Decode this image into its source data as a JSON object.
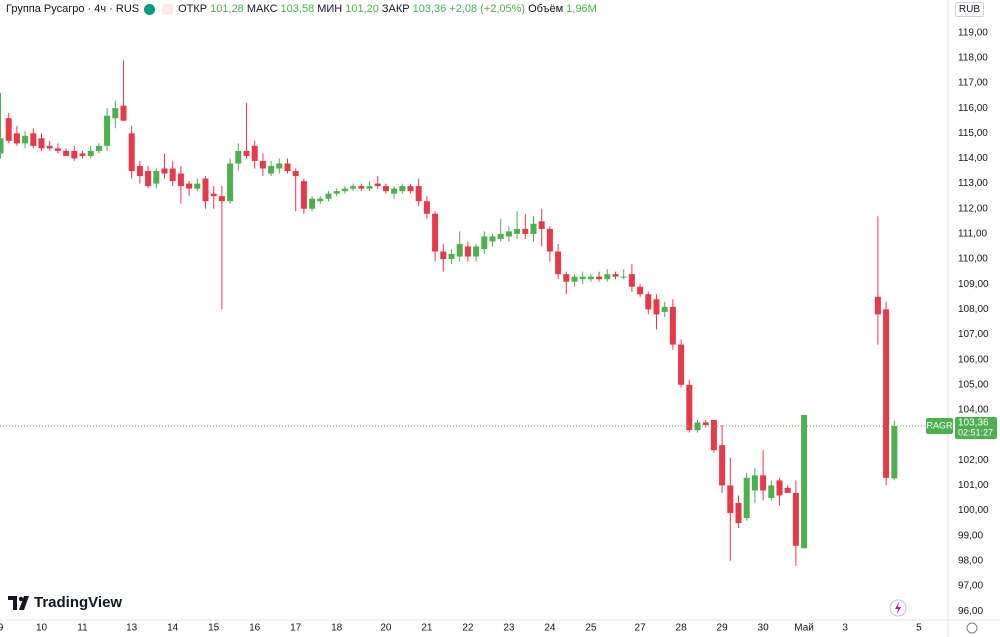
{
  "header": {
    "title": "Группа Русагро · 4ч · RUS",
    "fields": [
      {
        "label": "ОТКР",
        "value": "101,28"
      },
      {
        "label": "МАКС",
        "value": "103,58"
      },
      {
        "label": "МИН",
        "value": "101,20"
      },
      {
        "label": "ЗАКР",
        "value": "103,36"
      }
    ],
    "change": "+2,08 (+2,05%)",
    "volume_label": "Объём",
    "volume": "1,96M"
  },
  "currency": "RUB",
  "brand": "TradingView",
  "chart_data": {
    "type": "candlestick",
    "up_color": "#4caf50",
    "down_color": "#e8394b",
    "grid": false,
    "categories": [
      "9",
      null,
      null,
      null,
      null,
      "10",
      null,
      null,
      null,
      null,
      "11",
      null,
      null,
      null,
      null,
      null,
      "13",
      null,
      null,
      null,
      null,
      "14",
      null,
      null,
      null,
      null,
      "15",
      null,
      null,
      null,
      null,
      "16",
      null,
      null,
      null,
      null,
      "17",
      null,
      null,
      null,
      null,
      "18",
      null,
      null,
      null,
      null,
      null,
      "20",
      null,
      null,
      null,
      null,
      "21",
      null,
      null,
      null,
      null,
      "22",
      null,
      null,
      null,
      null,
      "23",
      null,
      null,
      null,
      null,
      "24",
      null,
      null,
      null,
      null,
      "25",
      null,
      null,
      null,
      null,
      null,
      "27",
      null,
      null,
      null,
      null,
      "28",
      null,
      null,
      null,
      null,
      "29",
      null,
      null,
      null,
      null,
      "30",
      null,
      null,
      null,
      null,
      "Май",
      null,
      null,
      null,
      null,
      "3",
      null,
      null,
      null,
      null,
      null,
      null,
      null,
      null,
      "5"
    ],
    "open": [
      114.2,
      115.6,
      115.0,
      114.6,
      115.0,
      114.8,
      114.5,
      114.4,
      114.3,
      114.3,
      114.2,
      114.1,
      114.3,
      114.5,
      115.6,
      116.1,
      115.0,
      113.7,
      113.5,
      113.0,
      113.6,
      113.6,
      113.4,
      113.0,
      112.8,
      113.2,
      112.6,
      112.5,
      112.3,
      113.8,
      114.3,
      114.5,
      113.9,
      113.4,
      113.6,
      113.8,
      113.5,
      113.1,
      112.0,
      112.3,
      112.4,
      112.6,
      112.7,
      112.8,
      112.9,
      112.8,
      113.0,
      112.9,
      112.6,
      112.7,
      112.9,
      112.9,
      112.3,
      111.8,
      110.3,
      110.0,
      110.1,
      110.5,
      110.1,
      110.4,
      110.7,
      110.8,
      110.9,
      111.0,
      111.2,
      111.0,
      111.5,
      111.2,
      110.3,
      109.4,
      109.1,
      109.2,
      109.2,
      109.3,
      109.2,
      109.4,
      109.3,
      109.4,
      108.9,
      108.6,
      108.4,
      107.9,
      108.1,
      106.6,
      105.0,
      103.2,
      103.5,
      103.6,
      102.6,
      101.0,
      100.3,
      99.7,
      100.8,
      101.4,
      100.5,
      101.2,
      100.9,
      100.7,
      98.5,
      null,
      null,
      null,
      null,
      null,
      null,
      null,
      null,
      108.5,
      108.0,
      101.28,
      null,
      null,
      null
    ],
    "high": [
      116.6,
      115.8,
      115.3,
      115.1,
      115.2,
      115.0,
      114.7,
      114.6,
      114.4,
      114.5,
      114.3,
      114.5,
      114.6,
      116.0,
      116.3,
      117.9,
      115.3,
      113.9,
      113.7,
      113.6,
      114.2,
      113.9,
      113.7,
      113.1,
      113.2,
      113.3,
      112.9,
      112.9,
      114.0,
      114.6,
      116.2,
      114.7,
      114.2,
      113.9,
      114.0,
      114.0,
      113.6,
      113.2,
      112.5,
      112.5,
      112.7,
      112.8,
      112.9,
      113.0,
      113.0,
      113.1,
      113.3,
      113.0,
      112.9,
      113.0,
      113.0,
      113.2,
      112.5,
      111.9,
      110.6,
      110.4,
      111.1,
      110.7,
      110.6,
      111.1,
      111.0,
      111.6,
      111.3,
      111.9,
      111.8,
      111.7,
      112.0,
      111.3,
      110.6,
      109.5,
      109.4,
      109.5,
      109.4,
      109.5,
      109.6,
      109.5,
      109.6,
      109.8,
      109.0,
      108.7,
      108.6,
      108.3,
      108.4,
      106.8,
      105.2,
      103.6,
      103.6,
      103.6,
      103.4,
      102.1,
      100.6,
      101.5,
      101.7,
      102.4,
      101.2,
      101.3,
      101.0,
      101.2,
      103.8,
      null,
      null,
      null,
      null,
      null,
      null,
      null,
      null,
      111.7,
      108.3,
      103.58,
      null,
      null,
      null
    ],
    "low": [
      114.0,
      114.6,
      114.5,
      114.4,
      114.4,
      114.3,
      114.3,
      114.2,
      114.1,
      113.9,
      114.0,
      114.0,
      114.2,
      114.3,
      115.2,
      115.5,
      113.2,
      113.0,
      112.8,
      112.8,
      113.2,
      112.9,
      112.2,
      112.5,
      112.7,
      112.0,
      112.0,
      108.0,
      112.2,
      113.5,
      114.0,
      113.6,
      113.3,
      113.3,
      113.4,
      113.4,
      111.9,
      111.8,
      111.9,
      112.2,
      112.3,
      112.5,
      112.6,
      112.7,
      112.7,
      112.7,
      112.8,
      112.6,
      112.4,
      112.6,
      112.6,
      112.1,
      111.6,
      109.9,
      109.5,
      109.8,
      109.9,
      109.9,
      109.9,
      110.2,
      110.5,
      110.7,
      110.7,
      110.8,
      110.8,
      110.7,
      110.5,
      109.9,
      109.2,
      108.6,
      108.9,
      109.0,
      109.1,
      109.1,
      109.1,
      109.2,
      109.2,
      108.7,
      108.5,
      107.8,
      107.2,
      107.7,
      106.4,
      104.9,
      103.1,
      103.1,
      103.3,
      102.3,
      100.7,
      98.0,
      99.3,
      99.6,
      100.3,
      100.4,
      100.4,
      100.2,
      100.7,
      97.8,
      98.5,
      null,
      null,
      null,
      null,
      null,
      null,
      null,
      null,
      106.6,
      101.0,
      101.2,
      null,
      null,
      null
    ],
    "close": [
      114.8,
      114.7,
      114.6,
      114.9,
      114.5,
      114.4,
      114.4,
      114.3,
      114.1,
      114.0,
      114.1,
      114.3,
      114.5,
      115.7,
      116.0,
      115.5,
      113.5,
      113.3,
      112.9,
      113.5,
      113.4,
      113.1,
      112.9,
      112.8,
      113.0,
      112.3,
      112.5,
      112.3,
      113.8,
      114.3,
      114.1,
      113.9,
      113.6,
      113.7,
      113.8,
      113.5,
      113.3,
      112.0,
      112.4,
      112.4,
      112.6,
      112.7,
      112.8,
      112.9,
      112.8,
      112.9,
      112.9,
      112.7,
      112.8,
      112.9,
      112.7,
      112.3,
      111.8,
      110.3,
      110.0,
      110.2,
      110.6,
      110.1,
      110.5,
      110.9,
      110.9,
      111.0,
      111.1,
      111.2,
      111.0,
      111.4,
      111.2,
      110.3,
      109.4,
      109.1,
      109.3,
      109.3,
      109.3,
      109.2,
      109.4,
      109.3,
      109.3,
      108.9,
      108.6,
      108.0,
      107.8,
      108.1,
      106.6,
      105.0,
      103.2,
      103.5,
      103.4,
      102.4,
      101.0,
      99.9,
      99.5,
      101.3,
      101.4,
      100.8,
      101.0,
      100.6,
      100.7,
      98.6,
      103.8,
      null,
      null,
      null,
      null,
      null,
      null,
      null,
      null,
      107.8,
      101.3,
      103.36,
      null,
      null,
      null
    ],
    "ylim": [
      95.45,
      120.3
    ],
    "yticks": [
      {
        "value": 96,
        "label": "96,00"
      },
      {
        "value": 97,
        "label": "97,00"
      },
      {
        "value": 98,
        "label": "98,00"
      },
      {
        "value": 99,
        "label": "99,00"
      },
      {
        "value": 100,
        "label": "100,00"
      },
      {
        "value": 101,
        "label": "101,00"
      },
      {
        "value": 102,
        "label": "102,00"
      },
      {
        "value": 103,
        "label": "103,00"
      },
      {
        "value": 104,
        "label": "104,00"
      },
      {
        "value": 105,
        "label": "105,00"
      },
      {
        "value": 106,
        "label": "106,00"
      },
      {
        "value": 107,
        "label": "107,00"
      },
      {
        "value": 108,
        "label": "108,00"
      },
      {
        "value": 109,
        "label": "109,00"
      },
      {
        "value": 110,
        "label": "110,00"
      },
      {
        "value": 111,
        "label": "111,00"
      },
      {
        "value": 112,
        "label": "112,00"
      },
      {
        "value": 113,
        "label": "113,00"
      },
      {
        "value": 114,
        "label": "114,00"
      },
      {
        "value": 115,
        "label": "115,00"
      },
      {
        "value": 116,
        "label": "116,00"
      },
      {
        "value": 117,
        "label": "117,00"
      },
      {
        "value": 118,
        "label": "118,00"
      },
      {
        "value": 119,
        "label": "119,00"
      }
    ],
    "last_price": {
      "value": 103.36,
      "label": "103,36"
    },
    "ticker": "RAGR",
    "countdown": "02:51:27"
  }
}
